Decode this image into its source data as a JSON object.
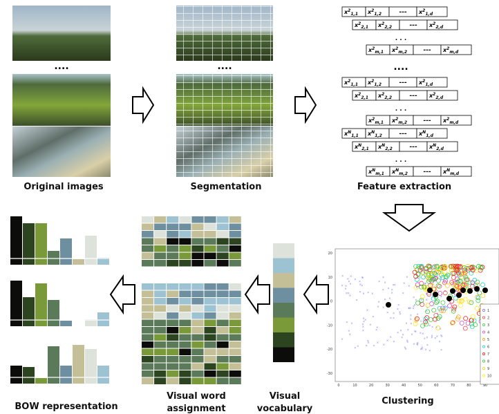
{
  "labels": {
    "original": "Original images",
    "segmentation": "Segmentation",
    "feature": "Feature extraction",
    "clustering": "Clustering",
    "vocabulary": [
      "Visual",
      "vocabulary"
    ],
    "assignment": [
      "Visual word",
      "assignment"
    ],
    "bow": "BOW representation"
  },
  "image_separator": "....",
  "feature_extraction": {
    "var": "x",
    "separator": "....",
    "groups": [
      {
        "rows": [
          {
            "cells": [
              {
                "sup": "2",
                "sub": "1,1"
              },
              {
                "sup": "2",
                "sub": "1,2"
              },
              {
                "text": "---"
              },
              {
                "sup": "2",
                "sub": "1,d"
              }
            ]
          },
          {
            "cells": [
              {
                "sup": "2",
                "sub": "2,1"
              },
              {
                "sup": "2",
                "sub": "2,2"
              },
              {
                "text": "---"
              },
              {
                "sup": "2",
                "sub": "2,d"
              }
            ]
          },
          {
            "dots": ". . ."
          },
          {
            "cells": [
              {
                "sup": "2",
                "sub": "m,1"
              },
              {
                "sup": "2",
                "sub": "m,2"
              },
              {
                "text": "---"
              },
              {
                "sup": "2",
                "sub": "m,d"
              }
            ]
          }
        ]
      },
      {
        "rows": [
          {
            "cells": [
              {
                "sup": "2",
                "sub": "1,1"
              },
              {
                "sup": "2",
                "sub": "1,2"
              },
              {
                "text": "---"
              },
              {
                "sup": "2",
                "sub": "1,d"
              }
            ]
          },
          {
            "cells": [
              {
                "sup": "2",
                "sub": "2,1"
              },
              {
                "sup": "2",
                "sub": "2,2"
              },
              {
                "text": "---"
              },
              {
                "sup": "2",
                "sub": "2,d"
              }
            ]
          },
          {
            "dots": ". . ."
          },
          {
            "cells": [
              {
                "sup": "2",
                "sub": "m,1"
              },
              {
                "sup": "2",
                "sub": "m,2"
              },
              {
                "text": "---"
              },
              {
                "sup": "2",
                "sub": "m,d"
              }
            ]
          },
          {
            "cells": [
              {
                "sup": "N",
                "sub": "1,1"
              },
              {
                "sup": "N",
                "sub": "1,2"
              },
              {
                "text": "---"
              },
              {
                "sup": "N",
                "sub": "1,d"
              }
            ]
          },
          {
            "cells": [
              {
                "sup": "N",
                "sub": "2,1"
              },
              {
                "sup": "N",
                "sub": "2,2"
              },
              {
                "text": "---"
              },
              {
                "sup": "N",
                "sub": "2,d"
              }
            ]
          },
          {
            "dots": ". . ."
          },
          {
            "cells": [
              {
                "sup": "N",
                "sub": "m,1"
              },
              {
                "sup": "N",
                "sub": "m,2"
              },
              {
                "text": "---"
              },
              {
                "sup": "N",
                "sub": "m,d"
              }
            ]
          }
        ]
      }
    ]
  },
  "clustering": {
    "yticks": [
      20,
      10,
      0,
      -10,
      -20,
      -30
    ],
    "xticks": [
      0,
      10,
      20,
      30,
      40,
      50,
      60,
      70,
      80,
      90
    ],
    "legend": [
      "1",
      "2",
      "3",
      "4",
      "5",
      "6",
      "7",
      "8",
      "9",
      "10"
    ]
  }
}
